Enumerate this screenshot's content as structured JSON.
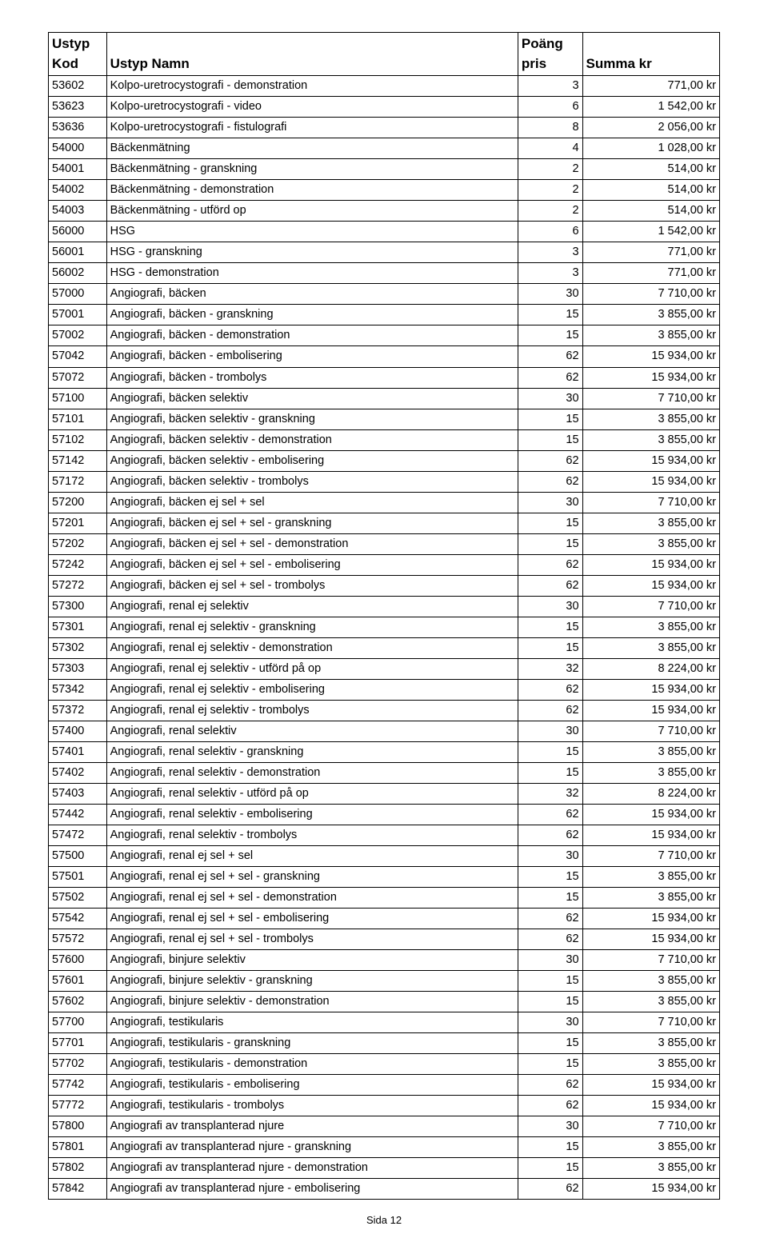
{
  "table": {
    "header": {
      "kod_line1": "Ustyp",
      "kod_line2": "Kod",
      "namn": "Ustyp Namn",
      "poang_line1": "Poäng",
      "poang_line2": "pris",
      "summa": "Summa kr"
    },
    "rows": [
      {
        "kod": "53602",
        "namn": "Kolpo-uretrocystografi - demonstration",
        "poang": "3",
        "summa": "771,00 kr"
      },
      {
        "kod": "53623",
        "namn": "Kolpo-uretrocystografi - video",
        "poang": "6",
        "summa": "1 542,00 kr"
      },
      {
        "kod": "53636",
        "namn": "Kolpo-uretrocystografi - fistulografi",
        "poang": "8",
        "summa": "2 056,00 kr"
      },
      {
        "kod": "54000",
        "namn": "Bäckenmätning",
        "poang": "4",
        "summa": "1 028,00 kr"
      },
      {
        "kod": "54001",
        "namn": "Bäckenmätning - granskning",
        "poang": "2",
        "summa": "514,00 kr"
      },
      {
        "kod": "54002",
        "namn": "Bäckenmätning - demonstration",
        "poang": "2",
        "summa": "514,00 kr"
      },
      {
        "kod": "54003",
        "namn": "Bäckenmätning - utförd op",
        "poang": "2",
        "summa": "514,00 kr"
      },
      {
        "kod": "56000",
        "namn": "HSG",
        "poang": "6",
        "summa": "1 542,00 kr"
      },
      {
        "kod": "56001",
        "namn": "HSG - granskning",
        "poang": "3",
        "summa": "771,00 kr"
      },
      {
        "kod": "56002",
        "namn": "HSG - demonstration",
        "poang": "3",
        "summa": "771,00 kr"
      },
      {
        "kod": "57000",
        "namn": "Angiografi, bäcken",
        "poang": "30",
        "summa": "7 710,00 kr"
      },
      {
        "kod": "57001",
        "namn": "Angiografi, bäcken - granskning",
        "poang": "15",
        "summa": "3 855,00 kr"
      },
      {
        "kod": "57002",
        "namn": "Angiografi, bäcken - demonstration",
        "poang": "15",
        "summa": "3 855,00 kr"
      },
      {
        "kod": "57042",
        "namn": "Angiografi, bäcken - embolisering",
        "poang": "62",
        "summa": "15 934,00 kr"
      },
      {
        "kod": "57072",
        "namn": "Angiografi, bäcken - trombolys",
        "poang": "62",
        "summa": "15 934,00 kr"
      },
      {
        "kod": "57100",
        "namn": "Angiografi, bäcken selektiv",
        "poang": "30",
        "summa": "7 710,00 kr"
      },
      {
        "kod": "57101",
        "namn": "Angiografi, bäcken selektiv - granskning",
        "poang": "15",
        "summa": "3 855,00 kr"
      },
      {
        "kod": "57102",
        "namn": "Angiografi, bäcken selektiv - demonstration",
        "poang": "15",
        "summa": "3 855,00 kr"
      },
      {
        "kod": "57142",
        "namn": "Angiografi, bäcken selektiv - embolisering",
        "poang": "62",
        "summa": "15 934,00 kr"
      },
      {
        "kod": "57172",
        "namn": "Angiografi, bäcken selektiv - trombolys",
        "poang": "62",
        "summa": "15 934,00 kr"
      },
      {
        "kod": "57200",
        "namn": "Angiografi, bäcken ej sel + sel",
        "poang": "30",
        "summa": "7 710,00 kr"
      },
      {
        "kod": "57201",
        "namn": "Angiografi, bäcken ej sel + sel - granskning",
        "poang": "15",
        "summa": "3 855,00 kr"
      },
      {
        "kod": "57202",
        "namn": "Angiografi, bäcken ej sel + sel - demonstration",
        "poang": "15",
        "summa": "3 855,00 kr"
      },
      {
        "kod": "57242",
        "namn": "Angiografi, bäcken ej sel + sel - embolisering",
        "poang": "62",
        "summa": "15 934,00 kr"
      },
      {
        "kod": "57272",
        "namn": "Angiografi, bäcken ej sel + sel - trombolys",
        "poang": "62",
        "summa": "15 934,00 kr"
      },
      {
        "kod": "57300",
        "namn": "Angiografi, renal ej selektiv",
        "poang": "30",
        "summa": "7 710,00 kr"
      },
      {
        "kod": "57301",
        "namn": "Angiografi, renal ej selektiv - granskning",
        "poang": "15",
        "summa": "3 855,00 kr"
      },
      {
        "kod": "57302",
        "namn": "Angiografi, renal ej selektiv - demonstration",
        "poang": "15",
        "summa": "3 855,00 kr"
      },
      {
        "kod": "57303",
        "namn": "Angiografi, renal ej selektiv - utförd på op",
        "poang": "32",
        "summa": "8 224,00 kr"
      },
      {
        "kod": "57342",
        "namn": "Angiografi, renal ej selektiv - embolisering",
        "poang": "62",
        "summa": "15 934,00 kr"
      },
      {
        "kod": "57372",
        "namn": "Angiografi, renal ej selektiv - trombolys",
        "poang": "62",
        "summa": "15 934,00 kr"
      },
      {
        "kod": "57400",
        "namn": "Angiografi, renal selektiv",
        "poang": "30",
        "summa": "7 710,00 kr"
      },
      {
        "kod": "57401",
        "namn": "Angiografi, renal selektiv - granskning",
        "poang": "15",
        "summa": "3 855,00 kr"
      },
      {
        "kod": "57402",
        "namn": "Angiografi, renal selektiv - demonstration",
        "poang": "15",
        "summa": "3 855,00 kr"
      },
      {
        "kod": "57403",
        "namn": "Angiografi, renal selektiv - utförd på op",
        "poang": "32",
        "summa": "8 224,00 kr"
      },
      {
        "kod": "57442",
        "namn": "Angiografi, renal selektiv - embolisering",
        "poang": "62",
        "summa": "15 934,00 kr"
      },
      {
        "kod": "57472",
        "namn": "Angiografi, renal selektiv - trombolys",
        "poang": "62",
        "summa": "15 934,00 kr"
      },
      {
        "kod": "57500",
        "namn": "Angiografi, renal ej sel + sel",
        "poang": "30",
        "summa": "7 710,00 kr"
      },
      {
        "kod": "57501",
        "namn": "Angiografi, renal ej sel + sel - granskning",
        "poang": "15",
        "summa": "3 855,00 kr"
      },
      {
        "kod": "57502",
        "namn": "Angiografi, renal ej sel + sel - demonstration",
        "poang": "15",
        "summa": "3 855,00 kr"
      },
      {
        "kod": "57542",
        "namn": "Angiografi, renal ej sel + sel - embolisering",
        "poang": "62",
        "summa": "15 934,00 kr"
      },
      {
        "kod": "57572",
        "namn": "Angiografi, renal ej sel + sel - trombolys",
        "poang": "62",
        "summa": "15 934,00 kr"
      },
      {
        "kod": "57600",
        "namn": "Angiografi, binjure selektiv",
        "poang": "30",
        "summa": "7 710,00 kr"
      },
      {
        "kod": "57601",
        "namn": "Angiografi, binjure selektiv - granskning",
        "poang": "15",
        "summa": "3 855,00 kr"
      },
      {
        "kod": "57602",
        "namn": "Angiografi, binjure selektiv - demonstration",
        "poang": "15",
        "summa": "3 855,00 kr"
      },
      {
        "kod": "57700",
        "namn": "Angiografi, testikularis",
        "poang": "30",
        "summa": "7 710,00 kr"
      },
      {
        "kod": "57701",
        "namn": "Angiografi, testikularis - granskning",
        "poang": "15",
        "summa": "3 855,00 kr"
      },
      {
        "kod": "57702",
        "namn": "Angiografi, testikularis - demonstration",
        "poang": "15",
        "summa": "3 855,00 kr"
      },
      {
        "kod": "57742",
        "namn": "Angiografi, testikularis - embolisering",
        "poang": "62",
        "summa": "15 934,00 kr"
      },
      {
        "kod": "57772",
        "namn": "Angiografi, testikularis - trombolys",
        "poang": "62",
        "summa": "15 934,00 kr"
      },
      {
        "kod": "57800",
        "namn": "Angiografi av transplanterad njure",
        "poang": "30",
        "summa": "7 710,00 kr"
      },
      {
        "kod": "57801",
        "namn": "Angiografi av transplanterad njure - granskning",
        "poang": "15",
        "summa": "3 855,00 kr"
      },
      {
        "kod": "57802",
        "namn": "Angiografi av transplanterad njure - demonstration",
        "poang": "15",
        "summa": "3 855,00 kr"
      },
      {
        "kod": "57842",
        "namn": "Angiografi av transplanterad njure - embolisering",
        "poang": "62",
        "summa": "15 934,00 kr"
      }
    ]
  },
  "footer": "Sida 12"
}
